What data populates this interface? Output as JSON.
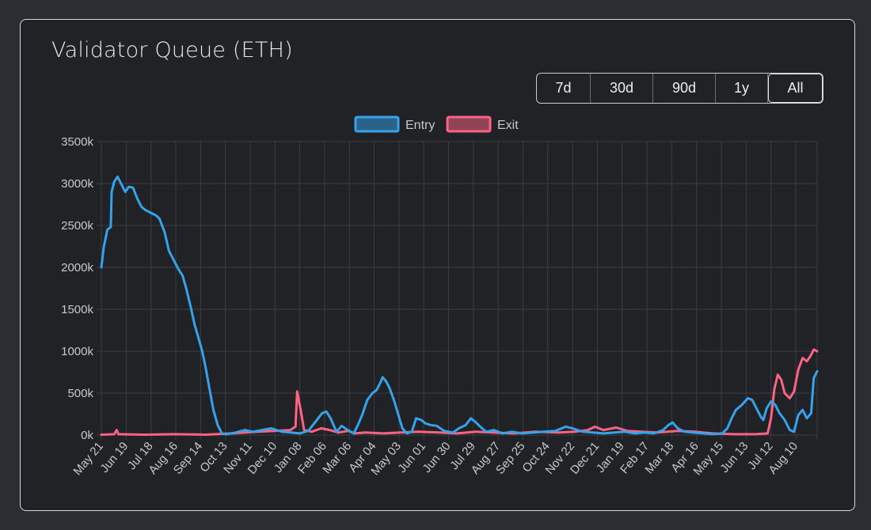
{
  "title": "Validator Queue (ETH)",
  "range_buttons": [
    {
      "label": "7d",
      "active": false
    },
    {
      "label": "30d",
      "active": false
    },
    {
      "label": "90d",
      "active": false
    },
    {
      "label": "1y",
      "active": false
    },
    {
      "label": "All",
      "active": true
    }
  ],
  "colors": {
    "background": "#202226",
    "entry": "#36a2eb",
    "exit": "#ff6384",
    "grid": "#3b3e43",
    "text": "#c8c9cc"
  },
  "chart_data": {
    "type": "line",
    "title": "",
    "xlabel": "",
    "ylabel": "",
    "ylim": [
      0,
      3500
    ],
    "y_unit_suffix": "k",
    "yticks": [
      0,
      500,
      1000,
      1500,
      2000,
      2500,
      3000,
      3500
    ],
    "grid": true,
    "legend_position": "top-center",
    "x_range": [
      "2023-05-21",
      "2025-09-04"
    ],
    "xtick_labels": [
      "May 21",
      "Jun 19",
      "Jul 18",
      "Aug 16",
      "Sep 14",
      "Oct 13",
      "Nov 11",
      "Dec 10",
      "Jan 08",
      "Feb 06",
      "Mar 06",
      "Apr 04",
      "May 03",
      "Jun 01",
      "Jun 30",
      "Jul 29",
      "Aug 27",
      "Sep 25",
      "Oct 24",
      "Nov 22",
      "Dec 21",
      "Jan 19",
      "Feb 17",
      "Mar 18",
      "Apr 16",
      "May 15",
      "Jun 13",
      "Jul 12",
      "Aug 10"
    ],
    "series": [
      {
        "name": "Entry",
        "color": "#36a2eb",
        "points": [
          [
            "2023-05-21",
            2000
          ],
          [
            "2023-05-24",
            2250
          ],
          [
            "2023-05-28",
            2450
          ],
          [
            "2023-06-01",
            2480
          ],
          [
            "2023-06-02",
            2900
          ],
          [
            "2023-06-05",
            3020
          ],
          [
            "2023-06-09",
            3080
          ],
          [
            "2023-06-14",
            2980
          ],
          [
            "2023-06-18",
            2900
          ],
          [
            "2023-06-22",
            2960
          ],
          [
            "2023-06-27",
            2950
          ],
          [
            "2023-07-02",
            2820
          ],
          [
            "2023-07-07",
            2720
          ],
          [
            "2023-07-12",
            2680
          ],
          [
            "2023-07-18",
            2650
          ],
          [
            "2023-07-24",
            2620
          ],
          [
            "2023-07-28",
            2580
          ],
          [
            "2023-08-03",
            2420
          ],
          [
            "2023-08-08",
            2200
          ],
          [
            "2023-08-13",
            2100
          ],
          [
            "2023-08-19",
            1980
          ],
          [
            "2023-08-24",
            1900
          ],
          [
            "2023-08-28",
            1760
          ],
          [
            "2023-09-02",
            1550
          ],
          [
            "2023-09-07",
            1320
          ],
          [
            "2023-09-11",
            1180
          ],
          [
            "2023-09-16",
            1000
          ],
          [
            "2023-09-20",
            800
          ],
          [
            "2023-09-25",
            520
          ],
          [
            "2023-09-29",
            300
          ],
          [
            "2023-10-04",
            120
          ],
          [
            "2023-10-09",
            20
          ],
          [
            "2023-10-14",
            10
          ],
          [
            "2023-10-25",
            30
          ],
          [
            "2023-11-05",
            60
          ],
          [
            "2023-11-14",
            40
          ],
          [
            "2023-11-25",
            60
          ],
          [
            "2023-12-06",
            80
          ],
          [
            "2023-12-18",
            40
          ],
          [
            "2023-12-29",
            30
          ],
          [
            "2024-01-08",
            20
          ],
          [
            "2024-01-18",
            50
          ],
          [
            "2024-01-28",
            180
          ],
          [
            "2024-02-03",
            260
          ],
          [
            "2024-02-08",
            280
          ],
          [
            "2024-02-13",
            200
          ],
          [
            "2024-02-20",
            40
          ],
          [
            "2024-02-26",
            110
          ],
          [
            "2024-03-04",
            60
          ],
          [
            "2024-03-11",
            20
          ],
          [
            "2024-03-16",
            120
          ],
          [
            "2024-03-21",
            240
          ],
          [
            "2024-03-27",
            420
          ],
          [
            "2024-04-02",
            500
          ],
          [
            "2024-04-07",
            540
          ],
          [
            "2024-04-11",
            620
          ],
          [
            "2024-04-14",
            690
          ],
          [
            "2024-04-18",
            640
          ],
          [
            "2024-04-22",
            560
          ],
          [
            "2024-04-27",
            420
          ],
          [
            "2024-05-02",
            250
          ],
          [
            "2024-05-07",
            80
          ],
          [
            "2024-05-12",
            20
          ],
          [
            "2024-05-18",
            40
          ],
          [
            "2024-05-23",
            200
          ],
          [
            "2024-05-29",
            180
          ],
          [
            "2024-06-03",
            140
          ],
          [
            "2024-06-09",
            120
          ],
          [
            "2024-06-16",
            110
          ],
          [
            "2024-06-25",
            50
          ],
          [
            "2024-07-05",
            30
          ],
          [
            "2024-07-12",
            80
          ],
          [
            "2024-07-20",
            120
          ],
          [
            "2024-07-26",
            200
          ],
          [
            "2024-07-31",
            160
          ],
          [
            "2024-08-06",
            100
          ],
          [
            "2024-08-13",
            40
          ],
          [
            "2024-08-22",
            60
          ],
          [
            "2024-09-01",
            20
          ],
          [
            "2024-09-12",
            40
          ],
          [
            "2024-09-24",
            20
          ],
          [
            "2024-10-07",
            30
          ],
          [
            "2024-10-20",
            40
          ],
          [
            "2024-11-02",
            50
          ],
          [
            "2024-11-14",
            100
          ],
          [
            "2024-11-22",
            80
          ],
          [
            "2024-12-04",
            40
          ],
          [
            "2024-12-16",
            30
          ],
          [
            "2024-12-28",
            20
          ],
          [
            "2025-01-10",
            30
          ],
          [
            "2025-01-22",
            40
          ],
          [
            "2025-02-03",
            20
          ],
          [
            "2025-02-14",
            30
          ],
          [
            "2025-02-25",
            20
          ],
          [
            "2025-03-08",
            60
          ],
          [
            "2025-03-14",
            120
          ],
          [
            "2025-03-19",
            150
          ],
          [
            "2025-03-25",
            80
          ],
          [
            "2025-04-02",
            40
          ],
          [
            "2025-04-12",
            30
          ],
          [
            "2025-04-24",
            20
          ],
          [
            "2025-05-06",
            10
          ],
          [
            "2025-05-16",
            20
          ],
          [
            "2025-05-22",
            80
          ],
          [
            "2025-05-27",
            200
          ],
          [
            "2025-06-01",
            300
          ],
          [
            "2025-06-08",
            360
          ],
          [
            "2025-06-15",
            440
          ],
          [
            "2025-06-20",
            420
          ],
          [
            "2025-06-25",
            320
          ],
          [
            "2025-06-30",
            220
          ],
          [
            "2025-07-03",
            180
          ],
          [
            "2025-07-07",
            320
          ],
          [
            "2025-07-12",
            400
          ],
          [
            "2025-07-17",
            360
          ],
          [
            "2025-07-22",
            260
          ],
          [
            "2025-07-28",
            180
          ],
          [
            "2025-08-03",
            60
          ],
          [
            "2025-08-08",
            40
          ],
          [
            "2025-08-13",
            240
          ],
          [
            "2025-08-18",
            300
          ],
          [
            "2025-08-23",
            200
          ],
          [
            "2025-08-28",
            260
          ],
          [
            "2025-08-31",
            680
          ],
          [
            "2025-09-04",
            760
          ]
        ]
      },
      {
        "name": "Exit",
        "color": "#ff6384",
        "points": [
          [
            "2023-05-21",
            5
          ],
          [
            "2023-06-05",
            10
          ],
          [
            "2023-06-08",
            60
          ],
          [
            "2023-06-10",
            10
          ],
          [
            "2023-07-10",
            5
          ],
          [
            "2023-08-15",
            10
          ],
          [
            "2023-09-20",
            5
          ],
          [
            "2023-10-20",
            20
          ],
          [
            "2023-11-20",
            40
          ],
          [
            "2023-12-10",
            50
          ],
          [
            "2023-12-28",
            60
          ],
          [
            "2024-01-03",
            100
          ],
          [
            "2024-01-05",
            520
          ],
          [
            "2024-01-09",
            300
          ],
          [
            "2024-01-13",
            60
          ],
          [
            "2024-01-22",
            40
          ],
          [
            "2024-02-02",
            80
          ],
          [
            "2024-02-12",
            60
          ],
          [
            "2024-02-22",
            30
          ],
          [
            "2024-03-05",
            50
          ],
          [
            "2024-03-12",
            20
          ],
          [
            "2024-03-25",
            30
          ],
          [
            "2024-04-15",
            20
          ],
          [
            "2024-05-05",
            30
          ],
          [
            "2024-05-25",
            40
          ],
          [
            "2024-06-20",
            30
          ],
          [
            "2024-07-10",
            20
          ],
          [
            "2024-08-01",
            40
          ],
          [
            "2024-08-20",
            30
          ],
          [
            "2024-09-15",
            20
          ],
          [
            "2024-10-10",
            40
          ],
          [
            "2024-11-05",
            30
          ],
          [
            "2024-11-25",
            40
          ],
          [
            "2024-12-10",
            60
          ],
          [
            "2024-12-18",
            100
          ],
          [
            "2024-12-28",
            60
          ],
          [
            "2025-01-12",
            90
          ],
          [
            "2025-01-25",
            50
          ],
          [
            "2025-02-10",
            40
          ],
          [
            "2025-03-01",
            30
          ],
          [
            "2025-03-25",
            50
          ],
          [
            "2025-04-14",
            40
          ],
          [
            "2025-05-05",
            20
          ],
          [
            "2025-05-30",
            10
          ],
          [
            "2025-06-25",
            10
          ],
          [
            "2025-07-08",
            20
          ],
          [
            "2025-07-12",
            200
          ],
          [
            "2025-07-16",
            550
          ],
          [
            "2025-07-20",
            720
          ],
          [
            "2025-07-24",
            660
          ],
          [
            "2025-07-28",
            500
          ],
          [
            "2025-08-03",
            440
          ],
          [
            "2025-08-08",
            520
          ],
          [
            "2025-08-13",
            780
          ],
          [
            "2025-08-18",
            920
          ],
          [
            "2025-08-23",
            880
          ],
          [
            "2025-08-27",
            940
          ],
          [
            "2025-08-31",
            1020
          ],
          [
            "2025-09-04",
            1000
          ]
        ]
      }
    ]
  }
}
